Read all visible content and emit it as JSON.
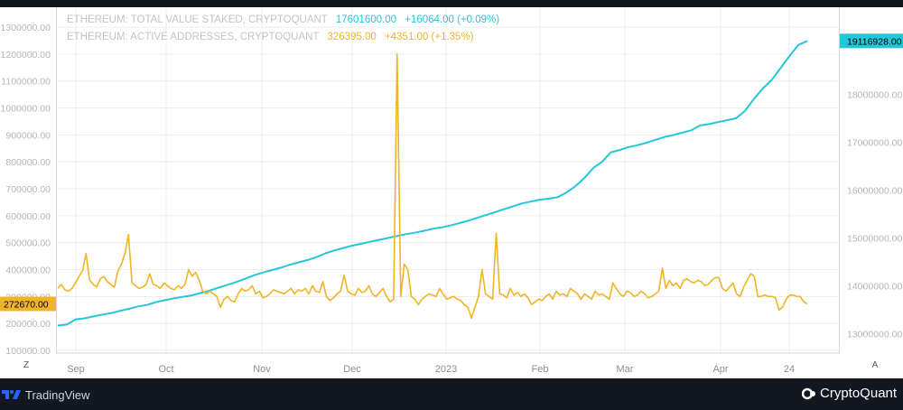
{
  "legend": {
    "series1_name": "ETHEREUM: TOTAL VALUE STAKED, CRYPTOQUANT",
    "series1_value": "17601600.00",
    "series1_change": "+16064.00 (+0.09%)",
    "series2_name": "ETHEREUM: ACTIVE ADDRESSES, CRYPTOQUANT",
    "series2_value": "326395.00",
    "series2_change": "+4351.00 (+1.35%)"
  },
  "labels": {
    "right_last": "19116928.00",
    "left_last": "272670.00",
    "z_button": "Z",
    "a_button": "A"
  },
  "branding": {
    "tradingview": "TradingView",
    "cryptoquant": "CryptoQuant"
  },
  "colors": {
    "staked": "#26c6da",
    "active": "#f0b429",
    "grid": "#ececec",
    "axis_text": "#b2b5be"
  },
  "chart_data": {
    "type": "line",
    "x_tick_labels": [
      "Sep",
      "Oct",
      "Nov",
      "Dec",
      "2023",
      "Feb",
      "Mar",
      "Apr",
      "24"
    ],
    "y_left": {
      "ticks": [
        "100000.00",
        "200000.00",
        "300000.00",
        "400000.00",
        "500000.00",
        "600000.00",
        "700000.00",
        "800000.00",
        "900000.00",
        "1000000.00",
        "1100000.00",
        "1200000.00",
        "1300000.00"
      ],
      "range": [
        100000,
        1300000
      ]
    },
    "y_right": {
      "ticks": [
        "13000000.00",
        "14000000.00",
        "15000000.00",
        "16000000.00",
        "17000000.00",
        "18000000.00"
      ],
      "range": [
        12700000,
        19900000
      ]
    },
    "series": [
      {
        "name": "ETHEREUM: TOTAL VALUE STAKED, CRYPTOQUANT",
        "axis": "right",
        "values": [
          13170000,
          13190000,
          13300000,
          13320000,
          13360000,
          13400000,
          13430000,
          13480000,
          13520000,
          13570000,
          13600000,
          13660000,
          13700000,
          13740000,
          13770000,
          13800000,
          13850000,
          13900000,
          13960000,
          14020000,
          14080000,
          14150000,
          14220000,
          14280000,
          14330000,
          14380000,
          14440000,
          14490000,
          14540000,
          14600000,
          14680000,
          14740000,
          14790000,
          14840000,
          14880000,
          14920000,
          14960000,
          15000000,
          15040000,
          15080000,
          15110000,
          15150000,
          15190000,
          15220000,
          15260000,
          15310000,
          15360000,
          15420000,
          15480000,
          15540000,
          15600000,
          15660000,
          15720000,
          15760000,
          15800000,
          15820000,
          15850000,
          15950000,
          16080000,
          16250000,
          16460000,
          16590000,
          16790000,
          16840000,
          16900000,
          16940000,
          16990000,
          17050000,
          17110000,
          17150000,
          17200000,
          17250000,
          17350000,
          17380000,
          17420000,
          17460000,
          17500000,
          17650000,
          17900000,
          18120000,
          18300000,
          18550000,
          18800000,
          19030000,
          19116928
        ]
      },
      {
        "name": "ETHEREUM: ACTIVE ADDRESSES, CRYPTOQUANT",
        "axis": "left",
        "values": [
          330000,
          345000,
          325000,
          320000,
          330000,
          350000,
          375000,
          395000,
          460000,
          360000,
          345000,
          335000,
          365000,
          375000,
          355000,
          345000,
          335000,
          395000,
          420000,
          460000,
          530000,
          350000,
          340000,
          330000,
          335000,
          345000,
          385000,
          345000,
          340000,
          330000,
          350000,
          340000,
          330000,
          325000,
          340000,
          330000,
          345000,
          400000,
          375000,
          390000,
          360000,
          320000,
          310000,
          320000,
          310000,
          300000,
          260000,
          290000,
          300000,
          285000,
          280000,
          310000,
          330000,
          320000,
          325000,
          340000,
          310000,
          320000,
          295000,
          300000,
          310000,
          325000,
          320000,
          315000,
          310000,
          320000,
          330000,
          310000,
          325000,
          320000,
          330000,
          310000,
          340000,
          320000,
          315000,
          355000,
          300000,
          285000,
          295000,
          310000,
          320000,
          380000,
          320000,
          310000,
          305000,
          330000,
          315000,
          320000,
          340000,
          310000,
          300000,
          315000,
          330000,
          300000,
          280000,
          290000,
          1200000,
          300000,
          420000,
          400000,
          300000,
          290000,
          270000,
          290000,
          300000,
          310000,
          305000,
          300000,
          330000,
          310000,
          290000,
          295000,
          300000,
          290000,
          285000,
          270000,
          260000,
          220000,
          260000,
          300000,
          400000,
          310000,
          300000,
          290000,
          535000,
          310000,
          305000,
          295000,
          330000,
          305000,
          315000,
          300000,
          310000,
          295000,
          270000,
          280000,
          290000,
          285000,
          300000,
          310000,
          290000,
          320000,
          305000,
          310000,
          300000,
          330000,
          320000,
          310000,
          290000,
          310000,
          300000,
          290000,
          320000,
          305000,
          310000,
          300000,
          290000,
          350000,
          330000,
          310000,
          300000,
          320000,
          315000,
          300000,
          305000,
          320000,
          310000,
          295000,
          300000,
          310000,
          320000,
          405000,
          330000,
          360000,
          340000,
          350000,
          330000,
          360000,
          365000,
          355000,
          350000,
          360000,
          355000,
          340000,
          345000,
          360000,
          370000,
          370000,
          330000,
          320000,
          335000,
          350000,
          310000,
          300000,
          335000,
          360000,
          385000,
          375000,
          300000,
          300000,
          305000,
          300000,
          300000,
          295000,
          250000,
          260000,
          290000,
          305000,
          305000,
          300000,
          300000,
          280000,
          272670
        ]
      }
    ]
  }
}
